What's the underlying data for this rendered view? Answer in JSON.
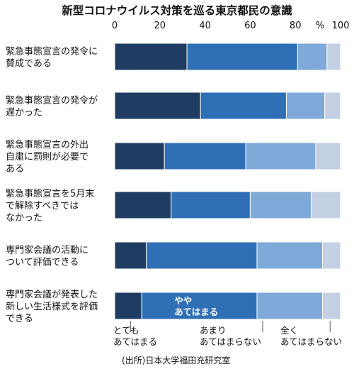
{
  "chart_data": {
    "type": "bar",
    "orientation": "horizontal",
    "stacked": true,
    "title": "新型コロナウイルス対策を巡る東京都民の意識",
    "unit": "%",
    "xlim": [
      0,
      100
    ],
    "ticks": [
      "0",
      "20",
      "40",
      "60",
      "80",
      "100"
    ],
    "categories": [
      [
        "緊急事態宣言の発令に",
        "賛成である"
      ],
      [
        "緊急事態宣言の発令が",
        "遅かった"
      ],
      [
        "緊急事態宣言の外出",
        "自粛に罰則が必要で",
        "ある"
      ],
      [
        "緊急事態宣言を5月末",
        "で解除すべきでは",
        "なかった"
      ],
      [
        "専門家会議の活動に",
        "ついて評価できる"
      ],
      [
        "専門家会議が発表した",
        "新しい生活様式を評価",
        "できる"
      ]
    ],
    "series": [
      {
        "name": "とても あてはまる",
        "color": "#1f3d63",
        "values": [
          32,
          38,
          22,
          25,
          14,
          12
        ]
      },
      {
        "name": "やや あてはまる",
        "color": "#2f6fb5",
        "values": [
          49,
          38,
          36,
          35,
          49,
          51
        ]
      },
      {
        "name": "あまり あてはまらない",
        "color": "#7ea9d8",
        "values": [
          13,
          17,
          31,
          27,
          29,
          29
        ]
      },
      {
        "name": "全く あてはまらない",
        "color": "#c3d0e3",
        "values": [
          6,
          7,
          11,
          13,
          8,
          8
        ]
      }
    ],
    "inline_label": {
      "lines": [
        "やや",
        "あてはまる"
      ]
    },
    "legend": [
      {
        "lines": [
          "とても",
          "あてはまる"
        ]
      },
      {
        "lines": [
          "あまり",
          "あてはまらない"
        ]
      },
      {
        "lines": [
          "全く",
          "あてはまらない"
        ]
      }
    ],
    "source": "(出所)日本大学福田充研究室"
  }
}
